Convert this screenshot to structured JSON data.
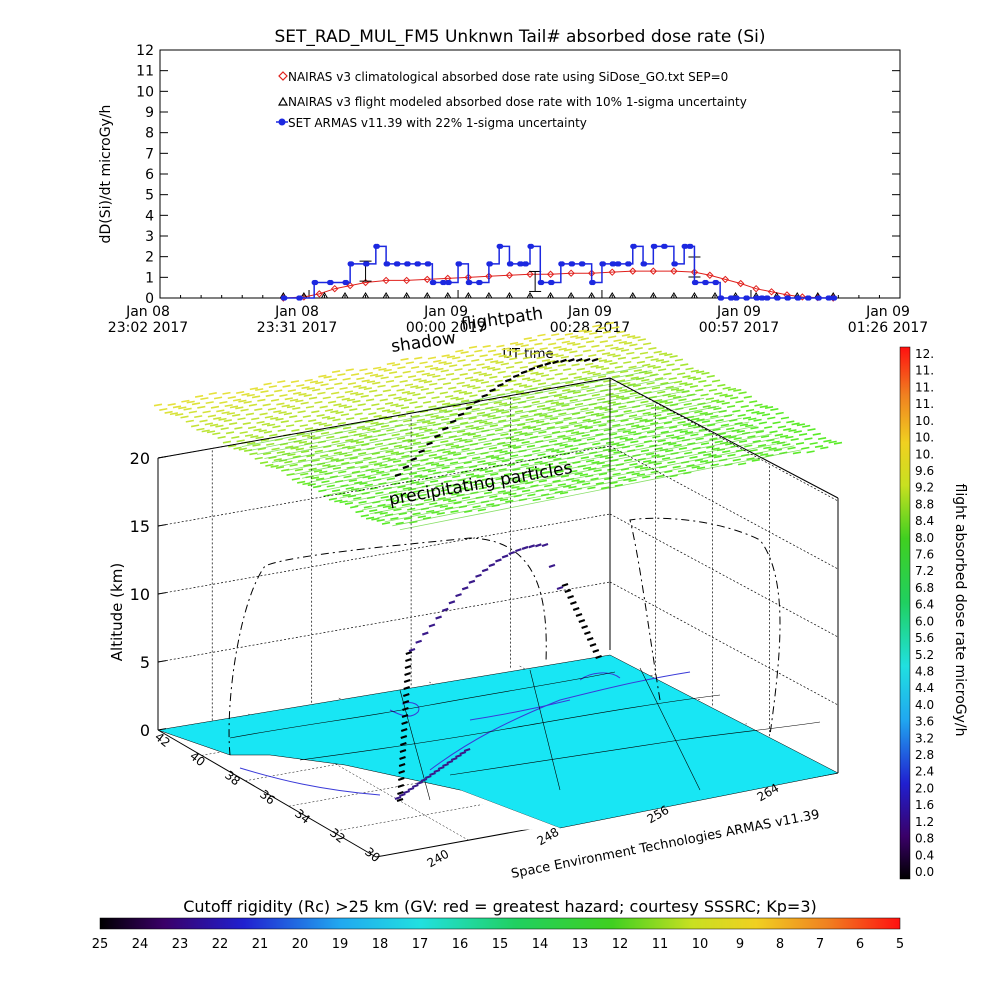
{
  "colors": {
    "nairas_climatological": "#e0201c",
    "nairas_flight": "#000000",
    "armas": "#1c28e0",
    "ground": "#18e6f4",
    "coast": "#3a3ad8"
  },
  "chart_data": [
    {
      "type": "line",
      "title": "SET_RAD_MUL_FM5 Unknwn Tail#  absorbed dose rate (Si)",
      "ylabel": "dD(Si)/dt microGy/h",
      "xlabel": "UT time",
      "ylim": [
        0,
        12
      ],
      "yticks": [
        "0",
        "1",
        "2",
        "3",
        "4",
        "5",
        "6",
        "7",
        "8",
        "9",
        "10",
        "11",
        "12"
      ],
      "x_unit": "minutes from Jan 08 23:02 2017",
      "xlim": [
        0,
        144
      ],
      "xticks": [
        {
          "x": 0,
          "date": "Jan 08",
          "time": "23:02 2017"
        },
        {
          "x": 29,
          "date": "Jan 08",
          "time": "23:31 2017"
        },
        {
          "x": 58,
          "date": "Jan 09",
          "time": "00:00 2017"
        },
        {
          "x": 86,
          "date": "Jan 09",
          "time": "00:28 2017"
        },
        {
          "x": 115,
          "date": "Jan 09",
          "time": "00:57 2017"
        },
        {
          "x": 144,
          "date": "Jan 09",
          "time": "01:26 2017"
        }
      ],
      "legend_placement": "top-center",
      "series": [
        {
          "name": "NAIRAS v3 climatological absorbed dose rate using SiDose_GO.txt SEP=0",
          "marker": "diamond",
          "x": [
            24,
            28,
            31,
            34,
            37,
            40,
            44,
            48,
            52,
            56,
            60,
            64,
            68,
            72,
            76,
            80,
            84,
            88,
            92,
            96,
            100,
            104,
            107,
            110,
            113,
            116,
            119,
            122,
            125,
            128,
            131
          ],
          "y": [
            0,
            0.05,
            0.2,
            0.45,
            0.6,
            0.75,
            0.85,
            0.85,
            0.9,
            0.95,
            1.0,
            1.05,
            1.1,
            1.15,
            1.15,
            1.2,
            1.2,
            1.25,
            1.3,
            1.3,
            1.3,
            1.25,
            1.1,
            0.9,
            0.7,
            0.45,
            0.3,
            0.15,
            0.05,
            0.02,
            0
          ]
        },
        {
          "name": "NAIRAS v3 flight modeled absorbed dose rate with 10% 1-sigma uncertainty",
          "marker": "triangle",
          "x": [
            24,
            28,
            32,
            36,
            40,
            44,
            48,
            52,
            56,
            60,
            64,
            68,
            72,
            76,
            80,
            84,
            88,
            92,
            96,
            100,
            104,
            108,
            112,
            116,
            120,
            124,
            128,
            131
          ],
          "y": [
            0,
            0,
            0,
            0,
            0,
            0,
            0,
            0,
            0,
            0,
            0,
            0,
            0,
            0,
            0,
            0,
            0,
            0,
            0,
            0,
            0,
            0,
            0,
            0,
            0,
            0,
            0,
            0
          ]
        },
        {
          "name": "SET ARMAS v11.39 with 22% 1-sigma uncertainty",
          "marker": "filled-circle",
          "x": [
            24,
            27,
            30,
            33,
            36,
            37,
            40,
            42,
            44,
            46,
            48,
            50,
            52,
            53,
            55,
            56,
            58,
            60,
            62,
            64,
            66,
            68,
            70,
            71,
            72,
            74,
            76,
            78,
            80,
            82,
            84,
            86,
            88,
            89,
            91,
            92,
            94,
            96,
            98,
            100,
            102,
            103,
            104,
            106,
            108,
            109,
            111,
            112,
            114,
            116,
            117,
            118,
            120,
            122,
            124,
            126,
            128,
            130,
            131
          ],
          "y": [
            0,
            0,
            0.75,
            0.75,
            0.75,
            1.65,
            1.65,
            2.5,
            1.65,
            1.65,
            1.65,
            1.65,
            1.65,
            0.75,
            0.75,
            0.75,
            1.65,
            0.75,
            0.75,
            1.65,
            2.5,
            1.65,
            1.65,
            1.65,
            2.5,
            0.75,
            0.75,
            1.65,
            1.65,
            1.65,
            0.75,
            1.65,
            1.65,
            1.65,
            1.65,
            2.5,
            1.65,
            2.5,
            2.5,
            1.65,
            2.5,
            2.5,
            0.75,
            0.75,
            0.75,
            0,
            0,
            0,
            0,
            0,
            0,
            0,
            0,
            0,
            0,
            0,
            0,
            0,
            0
          ]
        }
      ]
    },
    {
      "type": "scatter",
      "zlabel": "Altitude (km)",
      "zticks": [
        "0",
        "5",
        "10",
        "15",
        "20"
      ],
      "lat_ticks": [
        "42",
        "40",
        "38",
        "36",
        "34",
        "32",
        "30"
      ],
      "lon_ticks": [
        "240",
        "248",
        "256",
        "264"
      ],
      "annotations": {
        "shadow": "shadow",
        "flightpath": "flightpath",
        "precipitating": "precipitating particles",
        "credit": "Space Environment Technologies ARMAS v11.39"
      },
      "flight_points": [
        {
          "lon": 244,
          "lat": 38.0,
          "alt_km": 0
        },
        {
          "lon": 244.6,
          "lat": 38.4,
          "alt_km": 3
        },
        {
          "lon": 245.4,
          "lat": 39.0,
          "alt_km": 6
        },
        {
          "lon": 246.4,
          "lat": 39.6,
          "alt_km": 8.5
        },
        {
          "lon": 247.6,
          "lat": 40.2,
          "alt_km": 10.5
        },
        {
          "lon": 249.2,
          "lat": 40.8,
          "alt_km": 12
        },
        {
          "lon": 250.8,
          "lat": 41.2,
          "alt_km": 13
        },
        {
          "lon": 252.6,
          "lat": 41.6,
          "alt_km": 13
        },
        {
          "lon": 254.6,
          "lat": 41.8,
          "alt_km": 11.5
        },
        {
          "lon": 256.6,
          "lat": 41.9,
          "alt_km": 8
        },
        {
          "lon": 258.6,
          "lat": 41.9,
          "alt_km": 4
        }
      ]
    },
    {
      "type": "heatmap",
      "colorbar": "flight absorbed dose rate",
      "colorbar_label": "flight absorbed dose rate microGy/h",
      "orientation": "vertical",
      "range": [
        0,
        12
      ],
      "ticks": [
        "12.",
        "11.",
        "11.",
        "11.",
        "10.",
        "10.",
        "10.",
        "9.6",
        "9.2",
        "8.8",
        "8.4",
        "8.0",
        "7.6",
        "7.2",
        "6.8",
        "6.4",
        "6.0",
        "5.6",
        "5.2",
        "4.8",
        "4.4",
        "4.0",
        "3.6",
        "3.2",
        "2.8",
        "2.4",
        "2.0",
        "1.6",
        "1.2",
        "0.8",
        "0.4",
        "0.0"
      ]
    },
    {
      "type": "heatmap",
      "colorbar": "cutoff rigidity",
      "colorbar_label": "Cutoff rigidity (Rc) >25 km (GV: red = greatest hazard; courtesy SSSRC; Kp=3)",
      "orientation": "horizontal",
      "range": [
        25,
        5
      ],
      "ticks": [
        "25",
        "24",
        "23",
        "22",
        "21",
        "20",
        "19",
        "18",
        "17",
        "16",
        "15",
        "14",
        "13",
        "12",
        "11",
        "10",
        "9",
        "8",
        "7",
        "6",
        "5"
      ]
    }
  ]
}
